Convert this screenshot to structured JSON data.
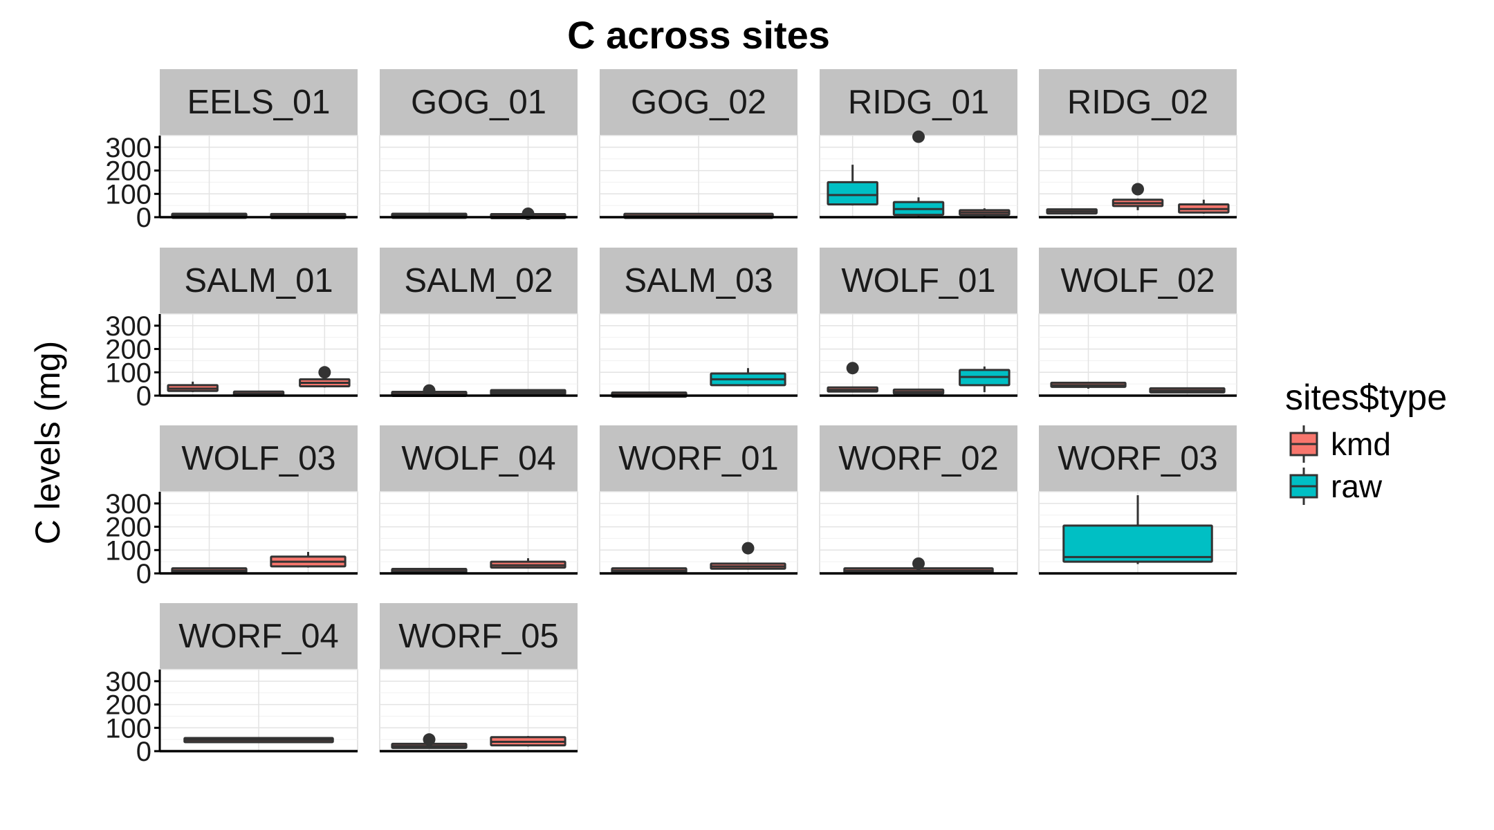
{
  "chart_data": {
    "type": "boxplot-facet",
    "title": "C across sites",
    "ylabel": "C levels (mg)",
    "ylim": [
      0,
      350
    ],
    "yticks": [
      "0",
      "100",
      "200",
      "300"
    ],
    "ytick_values": [
      0,
      100,
      200,
      300
    ],
    "legend": {
      "title": "sites$type",
      "placement": "right",
      "entries": [
        {
          "label": "kmd",
          "color": "#F8766D"
        },
        {
          "label": "raw",
          "color": "#00BFC4"
        }
      ]
    },
    "panels": [
      {
        "label": "EELS_01",
        "boxes": [
          {
            "q1": 3,
            "median": 6,
            "q3": 9,
            "min": 2,
            "max": 11,
            "type": "kmd",
            "outliers": []
          },
          {
            "q1": 3,
            "median": 5,
            "q3": 7,
            "min": 2,
            "max": 9,
            "type": "kmd",
            "outliers": []
          }
        ]
      },
      {
        "label": "GOG_01",
        "boxes": [
          {
            "q1": 3,
            "median": 6,
            "q3": 9,
            "min": 2,
            "max": 11,
            "type": "kmd",
            "outliers": []
          },
          {
            "q1": 2,
            "median": 4,
            "q3": 7,
            "min": 1,
            "max": 9,
            "type": "kmd",
            "outliers": [
              15
            ]
          }
        ]
      },
      {
        "label": "GOG_02",
        "boxes": [
          {
            "q1": 3,
            "median": 5,
            "q3": 8,
            "min": 2,
            "max": 10,
            "type": "kmd",
            "outliers": []
          }
        ]
      },
      {
        "label": "RIDG_01",
        "boxes": [
          {
            "q1": 55,
            "median": 95,
            "q3": 150,
            "min": 50,
            "max": 225,
            "type": "raw",
            "outliers": []
          },
          {
            "q1": 10,
            "median": 35,
            "q3": 65,
            "min": 5,
            "max": 85,
            "type": "raw",
            "outliers": [
              345
            ]
          },
          {
            "q1": 10,
            "median": 20,
            "q3": 30,
            "min": 5,
            "max": 38,
            "type": "kmd",
            "outliers": []
          }
        ]
      },
      {
        "label": "RIDG_02",
        "boxes": [
          {
            "q1": 18,
            "median": 25,
            "q3": 32,
            "min": 15,
            "max": 35,
            "type": "kmd",
            "outliers": []
          },
          {
            "q1": 48,
            "median": 60,
            "q3": 75,
            "min": 30,
            "max": 80,
            "type": "kmd",
            "outliers": [
              120
            ]
          },
          {
            "q1": 20,
            "median": 35,
            "q3": 55,
            "min": 15,
            "max": 75,
            "type": "kmd",
            "outliers": []
          }
        ]
      },
      {
        "label": "SALM_01",
        "boxes": [
          {
            "q1": 20,
            "median": 30,
            "q3": 45,
            "min": 15,
            "max": 60,
            "type": "kmd",
            "outliers": []
          },
          {
            "q1": 3,
            "median": 8,
            "q3": 14,
            "min": 2,
            "max": 16,
            "type": "kmd",
            "outliers": []
          },
          {
            "q1": 40,
            "median": 55,
            "q3": 70,
            "min": 35,
            "max": 75,
            "type": "kmd",
            "outliers": [
              100
            ]
          }
        ]
      },
      {
        "label": "SALM_02",
        "boxes": [
          {
            "q1": 3,
            "median": 7,
            "q3": 12,
            "min": 2,
            "max": 15,
            "type": "kmd",
            "outliers": [
              22
            ]
          },
          {
            "q1": 10,
            "median": 15,
            "q3": 20,
            "min": 8,
            "max": 22,
            "type": "kmd",
            "outliers": []
          }
        ]
      },
      {
        "label": "SALM_03",
        "boxes": [
          {
            "q1": 2,
            "median": 4,
            "q3": 7,
            "min": 1,
            "max": 9,
            "type": "kmd",
            "outliers": []
          },
          {
            "q1": 45,
            "median": 70,
            "q3": 95,
            "min": 40,
            "max": 118,
            "type": "raw",
            "outliers": []
          }
        ]
      },
      {
        "label": "WOLF_01",
        "boxes": [
          {
            "q1": 18,
            "median": 25,
            "q3": 35,
            "min": 15,
            "max": 38,
            "type": "kmd",
            "outliers": [
              118
            ]
          },
          {
            "q1": 12,
            "median": 16,
            "q3": 22,
            "min": 10,
            "max": 24,
            "type": "kmd",
            "outliers": []
          },
          {
            "q1": 45,
            "median": 80,
            "q3": 110,
            "min": 15,
            "max": 125,
            "type": "raw",
            "outliers": []
          }
        ]
      },
      {
        "label": "WOLF_02",
        "boxes": [
          {
            "q1": 38,
            "median": 45,
            "q3": 55,
            "min": 30,
            "max": 58,
            "type": "kmd",
            "outliers": []
          },
          {
            "q1": 15,
            "median": 22,
            "q3": 30,
            "min": 12,
            "max": 33,
            "type": "kmd",
            "outliers": []
          }
        ]
      },
      {
        "label": "WOLF_03",
        "boxes": [
          {
            "q1": 8,
            "median": 12,
            "q3": 18,
            "min": 6,
            "max": 20,
            "type": "kmd",
            "outliers": []
          },
          {
            "q1": 30,
            "median": 50,
            "q3": 72,
            "min": 25,
            "max": 92,
            "type": "kmd",
            "outliers": []
          }
        ]
      },
      {
        "label": "WOLF_04",
        "boxes": [
          {
            "q1": 6,
            "median": 10,
            "q3": 15,
            "min": 5,
            "max": 17,
            "type": "kmd",
            "outliers": []
          },
          {
            "q1": 25,
            "median": 35,
            "q3": 50,
            "min": 22,
            "max": 65,
            "type": "kmd",
            "outliers": []
          }
        ]
      },
      {
        "label": "WORF_01",
        "boxes": [
          {
            "q1": 8,
            "median": 12,
            "q3": 18,
            "min": 6,
            "max": 20,
            "type": "kmd",
            "outliers": []
          },
          {
            "q1": 20,
            "median": 30,
            "q3": 42,
            "min": 16,
            "max": 45,
            "type": "kmd",
            "outliers": [
              108
            ]
          }
        ]
      },
      {
        "label": "WORF_02",
        "boxes": [
          {
            "q1": 8,
            "median": 12,
            "q3": 18,
            "min": 6,
            "max": 20,
            "type": "kmd",
            "outliers": [
              42
            ]
          }
        ]
      },
      {
        "label": "WORF_03",
        "boxes": [
          {
            "q1": 50,
            "median": 70,
            "q3": 205,
            "min": 40,
            "max": 335,
            "type": "raw",
            "outliers": []
          }
        ]
      },
      {
        "label": "WORF_04",
        "boxes": [
          {
            "q1": 40,
            "median": 48,
            "q3": 55,
            "min": 38,
            "max": 58,
            "type": "kmd",
            "outliers": []
          }
        ]
      },
      {
        "label": "WORF_05",
        "boxes": [
          {
            "q1": 15,
            "median": 22,
            "q3": 30,
            "min": 12,
            "max": 32,
            "type": "kmd",
            "outliers": [
              50
            ]
          },
          {
            "q1": 25,
            "median": 40,
            "q3": 60,
            "min": 20,
            "max": 65,
            "type": "kmd",
            "outliers": []
          }
        ]
      }
    ]
  }
}
